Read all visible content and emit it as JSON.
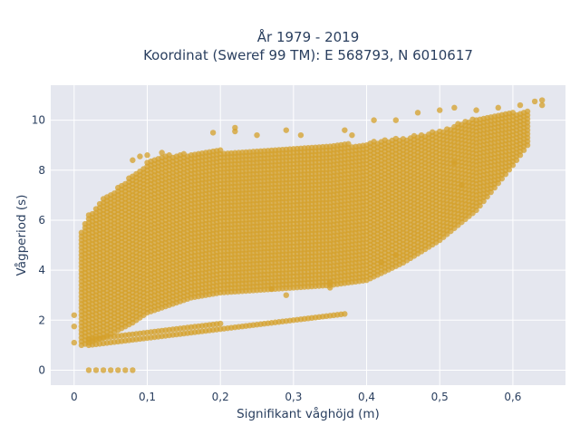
{
  "chart_data": {
    "type": "scatter",
    "title_lines": [
      "År 1979 - 2019",
      "Koordinat (Sweref 99 TM): E 568793, N 6010617"
    ],
    "xlabel": "Signifikant våghöjd (m)",
    "ylabel": "Vågperiod (s)",
    "xlim": [
      -0.032,
      0.672
    ],
    "ylim": [
      -0.6,
      11.4
    ],
    "x_ticks": [
      0,
      0.1,
      0.2,
      0.3,
      0.4,
      0.5,
      0.6
    ],
    "x_tick_labels": [
      "0",
      "0,1",
      "0,2",
      "0,3",
      "0,4",
      "0,5",
      "0,6"
    ],
    "y_ticks": [
      0,
      2,
      4,
      6,
      8,
      10
    ],
    "y_tick_labels": [
      "0",
      "2",
      "4",
      "6",
      "8",
      "10"
    ],
    "grid": true,
    "marker_color": "#d4a02a",
    "plot_bg": "#e5e7ef",
    "grid_color": "#ffffff",
    "x_step": 0.005,
    "y_step": 0.15,
    "main_band": {
      "x": [
        0.01,
        0.02,
        0.04,
        0.06,
        0.08,
        0.1,
        0.13,
        0.16,
        0.2,
        0.25,
        0.3,
        0.35,
        0.4,
        0.45,
        0.5,
        0.55,
        0.6,
        0.62
      ],
      "y_low": [
        1.0,
        1.1,
        1.3,
        1.6,
        1.9,
        2.3,
        2.6,
        2.9,
        3.1,
        3.2,
        3.3,
        3.4,
        3.6,
        4.3,
        5.2,
        6.4,
        8.2,
        9.0
      ],
      "y_high": [
        5.6,
        6.2,
        6.9,
        7.3,
        7.8,
        8.3,
        8.6,
        8.7,
        8.8,
        8.8,
        8.9,
        9.0,
        9.1,
        9.3,
        9.6,
        10.1,
        10.3,
        10.4
      ]
    },
    "lower_series": {
      "x_start": 0.02,
      "x_end": 0.37,
      "y_start": 1.0,
      "y_end": 2.25
    },
    "zero_series": {
      "x": [
        0.02,
        0.03,
        0.04,
        0.05,
        0.06,
        0.07,
        0.08
      ],
      "y": [
        0,
        0,
        0,
        0,
        0,
        0,
        0
      ]
    },
    "outliers": [
      {
        "x": 0.0,
        "y": 2.2
      },
      {
        "x": 0.0,
        "y": 1.75
      },
      {
        "x": 0.0,
        "y": 1.1
      },
      {
        "x": 0.08,
        "y": 8.4
      },
      {
        "x": 0.09,
        "y": 8.55
      },
      {
        "x": 0.1,
        "y": 8.6
      },
      {
        "x": 0.12,
        "y": 8.7
      },
      {
        "x": 0.19,
        "y": 9.5
      },
      {
        "x": 0.22,
        "y": 9.55
      },
      {
        "x": 0.22,
        "y": 9.7
      },
      {
        "x": 0.25,
        "y": 9.4
      },
      {
        "x": 0.29,
        "y": 9.6
      },
      {
        "x": 0.31,
        "y": 9.4
      },
      {
        "x": 0.37,
        "y": 9.6
      },
      {
        "x": 0.38,
        "y": 9.4
      },
      {
        "x": 0.41,
        "y": 10.0
      },
      {
        "x": 0.44,
        "y": 10.0
      },
      {
        "x": 0.47,
        "y": 10.3
      },
      {
        "x": 0.5,
        "y": 10.4
      },
      {
        "x": 0.52,
        "y": 10.5
      },
      {
        "x": 0.55,
        "y": 10.4
      },
      {
        "x": 0.58,
        "y": 10.5
      },
      {
        "x": 0.61,
        "y": 10.6
      },
      {
        "x": 0.63,
        "y": 10.75
      },
      {
        "x": 0.64,
        "y": 10.8
      },
      {
        "x": 0.64,
        "y": 10.6
      },
      {
        "x": 0.35,
        "y": 3.5
      },
      {
        "x": 0.35,
        "y": 3.3
      },
      {
        "x": 0.42,
        "y": 4.3
      },
      {
        "x": 0.44,
        "y": 4.6
      },
      {
        "x": 0.52,
        "y": 8.3
      },
      {
        "x": 0.53,
        "y": 7.4
      },
      {
        "x": 0.27,
        "y": 3.25
      },
      {
        "x": 0.29,
        "y": 3.0
      }
    ]
  }
}
